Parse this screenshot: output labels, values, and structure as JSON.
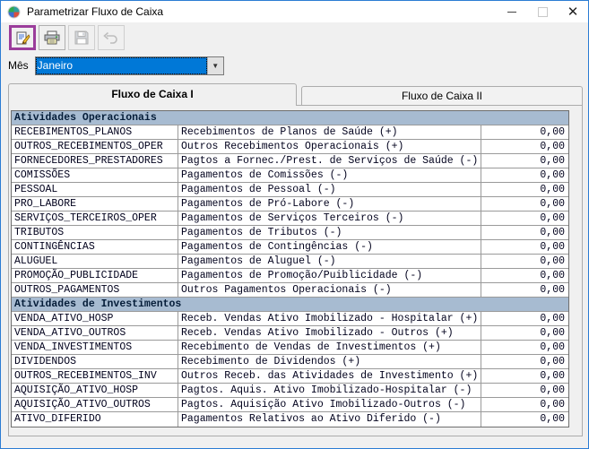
{
  "window": {
    "title": "Parametrizar Fluxo de Caixa",
    "controls": {
      "minimize": "minimize",
      "maximize": "maximize-disabled",
      "close": "close"
    }
  },
  "toolbar": {
    "buttons": [
      {
        "icon": "edit-note-icon",
        "state": "selected"
      },
      {
        "icon": "printer-icon",
        "state": "enabled"
      },
      {
        "icon": "save-icon",
        "state": "disabled"
      },
      {
        "icon": "undo-icon",
        "state": "disabled"
      }
    ]
  },
  "month": {
    "label": "Mês",
    "value": "Janeiro"
  },
  "tabs": [
    {
      "label": "Fluxo de Caixa I",
      "active": true
    },
    {
      "label": "Fluxo de Caixa II",
      "active": false
    }
  ],
  "table": {
    "sections": [
      {
        "header": "Atividades Operacionais",
        "rows": [
          {
            "code": "RECEBIMENTOS_PLANOS",
            "description": "Recebimentos de Planos de Saúde (+)",
            "value": "0,00"
          },
          {
            "code": "OUTROS_RECEBIMENTOS_OPER",
            "description": "Outros Recebimentos Operacionais (+)",
            "value": "0,00"
          },
          {
            "code": "FORNECEDORES_PRESTADORES",
            "description": "Pagtos a Fornec./Prest. de Serviços de Saúde (-)",
            "value": "0,00"
          },
          {
            "code": "COMISSÕES",
            "description": "Pagamentos de Comissões (-)",
            "value": "0,00"
          },
          {
            "code": "PESSOAL",
            "description": "Pagamentos de Pessoal (-)",
            "value": "0,00"
          },
          {
            "code": "PRO_LABORE",
            "description": "Pagamentos de Pró-Labore (-)",
            "value": "0,00"
          },
          {
            "code": "SERVIÇOS_TERCEIROS_OPER",
            "description": "Pagamentos de Serviços Terceiros (-)",
            "value": "0,00"
          },
          {
            "code": "TRIBUTOS",
            "description": "Pagamentos de Tributos (-)",
            "value": "0,00"
          },
          {
            "code": "CONTINGÊNCIAS",
            "description": "Pagamentos de Contingências (-)",
            "value": "0,00"
          },
          {
            "code": "ALUGUEL",
            "description": "Pagamentos de Aluguel (-)",
            "value": "0,00"
          },
          {
            "code": "PROMOÇÃO_PUBLICIDADE",
            "description": "Pagamentos de Promoção/Puiblicidade (-)",
            "value": "0,00"
          },
          {
            "code": "OUTROS_PAGAMENTOS",
            "description": "Outros Pagamentos Operacionais (-)",
            "value": "0,00"
          }
        ]
      },
      {
        "header": "Atividades de Investimentos",
        "rows": [
          {
            "code": "VENDA_ATIVO_HOSP",
            "description": "Receb. Vendas Ativo Imobilizado - Hospitalar (+)",
            "value": "0,00"
          },
          {
            "code": "VENDA_ATIVO_OUTROS",
            "description": "Receb. Vendas Ativo Imobilizado - Outros (+)",
            "value": "0,00"
          },
          {
            "code": "VENDA_INVESTIMENTOS",
            "description": "Recebimento de Vendas de Investimentos (+)",
            "value": "0,00"
          },
          {
            "code": "DIVIDENDOS",
            "description": "Recebimento de Dividendos (+)",
            "value": "0,00"
          },
          {
            "code": "OUTROS_RECEBIMENTOS_INV",
            "description": "Outros Receb. das Atividades de Investimento (+)",
            "value": "0,00"
          },
          {
            "code": "AQUISIÇÃO_ATIVO_HOSP",
            "description": "Pagtos. Aquis. Ativo Imobilizado-Hospitalar (-)",
            "value": "0,00"
          },
          {
            "code": "AQUISIÇÃO_ATIVO_OUTROS",
            "description": "Pagtos. Aquisição Ativo Imobilizado-Outros (-)",
            "value": "0,00"
          },
          {
            "code": "ATIVO_DIFERIDO",
            "description": "Pagamentos Relativos ao Ativo Diferido (-)",
            "value": "0,00"
          }
        ]
      }
    ]
  },
  "colors": {
    "window_border": "#2b7cd3",
    "titlebar_bg": "#ffffff",
    "client_bg": "#f0f0f0",
    "section_header_bg": "#a7bbd1",
    "combo_selection_bg": "#0078d7",
    "selected_tool_outline": "#9b3d9b",
    "grid_line": "#9a9a9a"
  }
}
